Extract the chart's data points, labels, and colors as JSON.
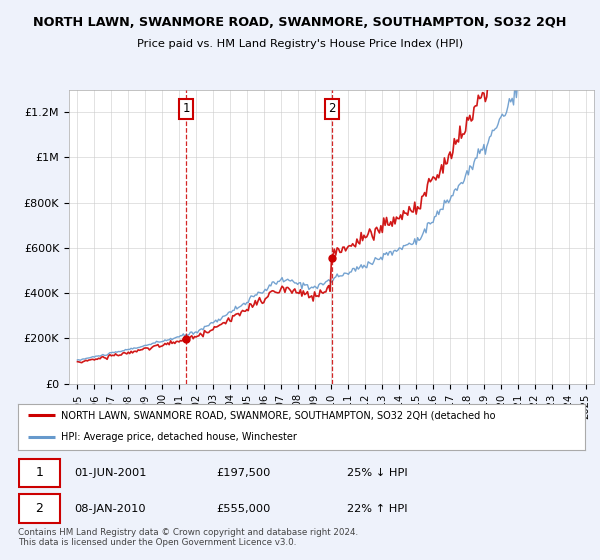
{
  "title": "NORTH LAWN, SWANMORE ROAD, SWANMORE, SOUTHAMPTON, SO32 2QH",
  "subtitle": "Price paid vs. HM Land Registry's House Price Index (HPI)",
  "legend_label_red": "NORTH LAWN, SWANMORE ROAD, SWANMORE, SOUTHAMPTON, SO32 2QH (detached ho",
  "legend_label_blue": "HPI: Average price, detached house, Winchester",
  "footnote": "Contains HM Land Registry data © Crown copyright and database right 2024.\nThis data is licensed under the Open Government Licence v3.0.",
  "sale1_date": "01-JUN-2001",
  "sale1_price": "£197,500",
  "sale1_hpi": "25% ↓ HPI",
  "sale2_date": "08-JAN-2010",
  "sale2_price": "£555,000",
  "sale2_hpi": "22% ↑ HPI",
  "sale1_x": 2001.42,
  "sale1_y": 197500,
  "sale2_x": 2010.03,
  "sale2_y": 555000,
  "vline1_x": 2001.42,
  "vline2_x": 2010.03,
  "ylim": [
    0,
    1300000
  ],
  "xlim": [
    1994.5,
    2025.5
  ],
  "bg_color": "#eef2fb",
  "plot_bg_color": "#ffffff",
  "red_color": "#cc0000",
  "blue_color": "#6699cc",
  "vline_color": "#cc0000",
  "grid_color": "#cccccc"
}
